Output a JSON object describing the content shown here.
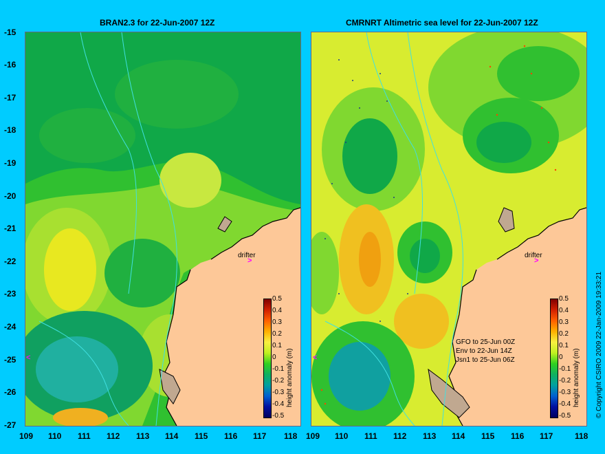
{
  "panels": [
    {
      "title": "BRAN2.3 for 22-Jun-2007 12Z",
      "drifter_label": "drifter"
    },
    {
      "title": "CMRNRT Altimetric sea level  for 22-Jun-2007 12Z",
      "drifter_label": "drifter"
    }
  ],
  "y_ticks": [
    "-15",
    "-16",
    "-17",
    "-18",
    "-19",
    "-20",
    "-21",
    "-22",
    "-23",
    "-24",
    "-25",
    "-26",
    "-27"
  ],
  "x_ticks": [
    "109",
    "110",
    "111",
    "112",
    "113",
    "114",
    "115",
    "116",
    "117",
    "118"
  ],
  "colorbar": {
    "title": "height anomaly (m)",
    "ticks": [
      "0.5",
      "0.4",
      "0.3",
      "0.2",
      "0.1",
      "0",
      "-0.1",
      "-0.2",
      "-0.3",
      "-0.4",
      "-0.5"
    ]
  },
  "satellite_info": [
    "GFO to 25-Jun 00Z",
    "Env to 22-Jun 14Z",
    "Jsn1 to 25-Jun 06Z"
  ],
  "copyright": "© Copyright CSIRO 2009   22-Jan-2009 19:33:21",
  "colors": {
    "background": "#00ccff",
    "land": "#fdc898",
    "coast_shade": "#c0a890",
    "contour": "#40e0e0",
    "drifter": "#ff00ff"
  }
}
